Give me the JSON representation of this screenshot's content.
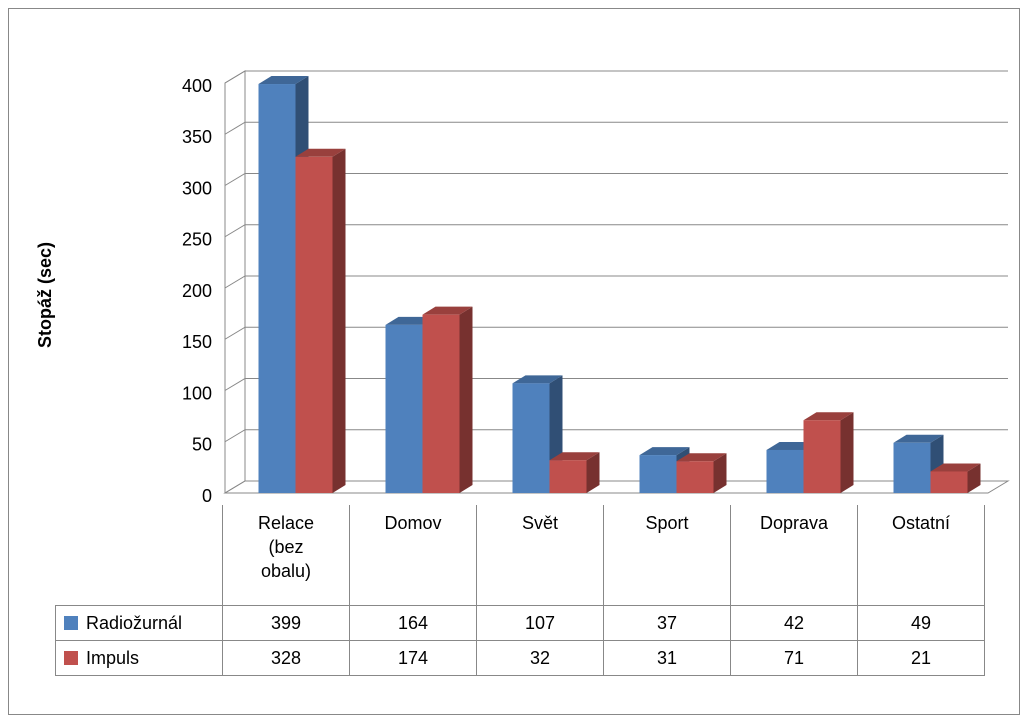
{
  "chart_data": {
    "type": "bar3d",
    "y_label": "Stopáž (sec)",
    "categories": [
      "Relace (bez obalu)",
      "Domov",
      "Svět",
      "Sport",
      "Doprava",
      "Ostatní"
    ],
    "series": [
      {
        "name": "Radiožurnál",
        "color": "#4f81bd",
        "values": [
          399,
          164,
          107,
          37,
          42,
          49
        ]
      },
      {
        "name": "Impuls",
        "color": "#c0504d",
        "values": [
          328,
          174,
          32,
          31,
          71,
          21
        ]
      }
    ],
    "ylim": [
      0,
      400
    ],
    "yticks": [
      0,
      50,
      100,
      150,
      200,
      250,
      300,
      350,
      400
    ],
    "grid": true,
    "data_table": true
  }
}
